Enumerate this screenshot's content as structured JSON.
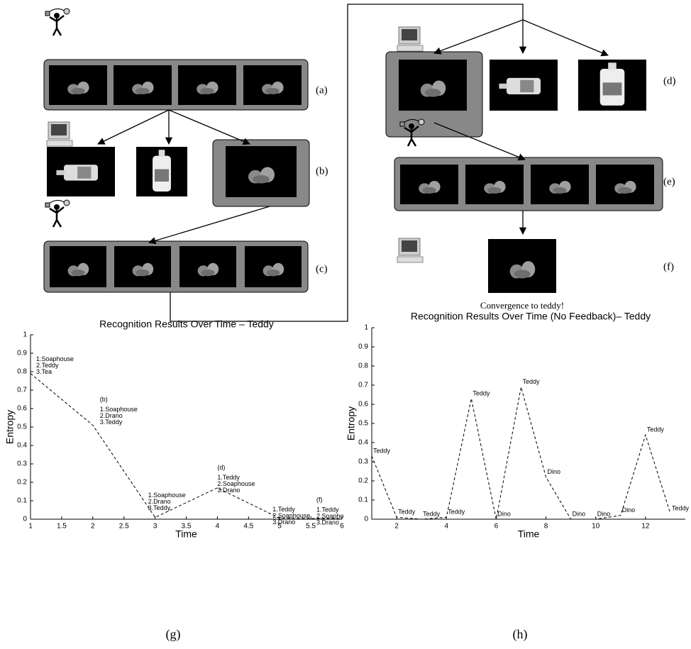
{
  "diagram": {
    "steps": [
      "(a)",
      "(b)",
      "(c)",
      "(d)",
      "(e)",
      "(f)"
    ],
    "caption": "Convergence to teddy!"
  },
  "chart_data": [
    {
      "type": "line",
      "title": "Recognition Results Over Time – Teddy",
      "x_label": "Time",
      "y_label": "Entropy",
      "x": [
        1,
        2,
        3,
        4,
        5,
        6
      ],
      "values": [
        0.79,
        0.51,
        0.01,
        0.17,
        0.005,
        0.003
      ],
      "point_tags": [
        null,
        "(b)",
        null,
        "(d)",
        null,
        "(f)"
      ],
      "point_labels": [
        [
          "1.Soaphouse",
          "2.Teddy",
          "3.Tea"
        ],
        [
          "1.Soaphouse",
          "2.Drano",
          "3.Teddy"
        ],
        [
          "1.Soaphouse",
          "2.Drano",
          "3.Teddy"
        ],
        [
          "1.Teddy",
          "2.Soaphouse",
          "3.Drano"
        ],
        [
          "1.Teddy",
          "2.Soaphouse",
          "3.Drano"
        ],
        [
          "1.Teddy",
          "2.Soapho",
          "3.Drano"
        ]
      ],
      "xlim": [
        1,
        6
      ],
      "xticks": [
        1,
        1.5,
        2,
        2.5,
        3,
        3.5,
        4,
        4.5,
        5,
        5.5,
        6
      ],
      "ylim": [
        0,
        1
      ],
      "yticks": [
        0,
        0.1,
        0.2,
        0.3,
        0.4,
        0.5,
        0.6,
        0.7,
        0.8,
        0.9,
        1
      ],
      "color": "#000000",
      "line_style": "dashed",
      "panel": "(g)"
    },
    {
      "type": "line",
      "title": "Recognition Results Over Time (No Feedback)– Teddy",
      "x_label": "Time",
      "y_label": "Entropy",
      "x": [
        1,
        2,
        3,
        4,
        5,
        6,
        7,
        8,
        9,
        10,
        11,
        12,
        13
      ],
      "values": [
        0.33,
        0.01,
        0.0,
        0.01,
        0.63,
        0.0,
        0.69,
        0.22,
        0.0,
        0.0,
        0.02,
        0.44,
        0.03
      ],
      "point_labels": [
        "Teddy",
        "Teddy",
        "Teddy",
        "Teddy",
        "Teddy",
        "Dino",
        "Teddy",
        "Dino",
        "Dino",
        "Dino",
        "Dino",
        "Teddy",
        "Teddy"
      ],
      "xlim": [
        1,
        13.6
      ],
      "xticks": [
        2,
        4,
        6,
        8,
        10,
        12
      ],
      "ylim": [
        0,
        1
      ],
      "yticks": [
        0,
        0.1,
        0.2,
        0.3,
        0.4,
        0.5,
        0.6,
        0.7,
        0.8,
        0.9,
        1
      ],
      "color": "#000000",
      "line_style": "dashed",
      "panel": "(h)"
    }
  ]
}
